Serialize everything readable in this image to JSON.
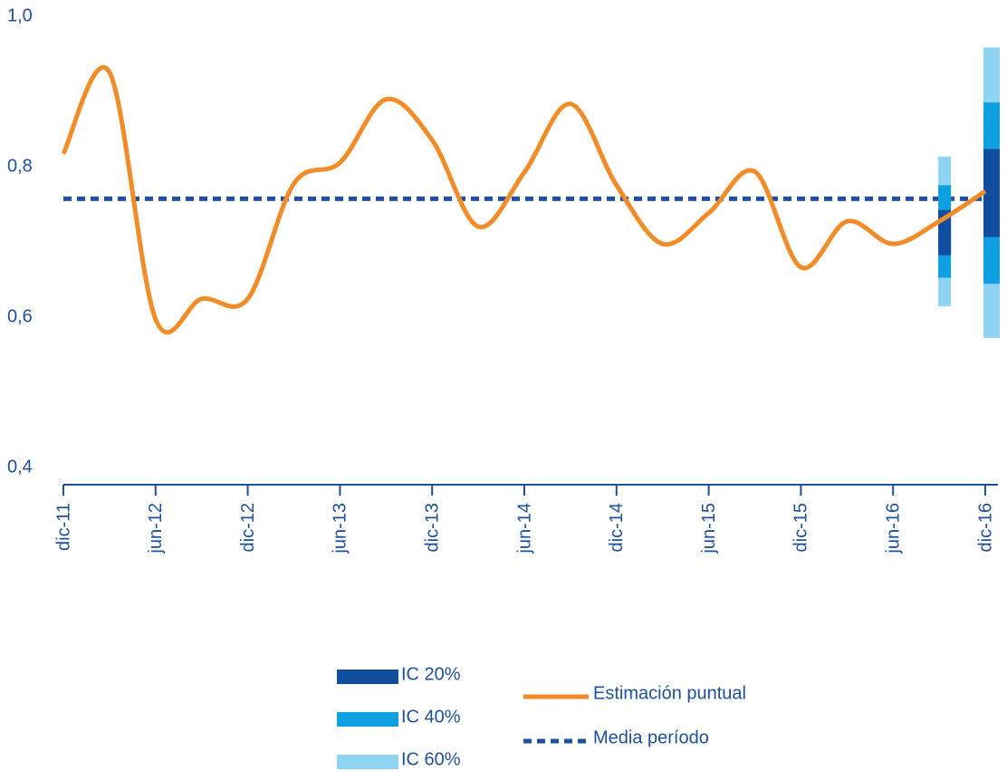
{
  "chart_data": {
    "type": "line",
    "categories": [
      "dic-11",
      null,
      "jun-12",
      null,
      "dic-12",
      null,
      "jun-13",
      null,
      "dic-13",
      null,
      "jun-14",
      null,
      "dic-14",
      null,
      "jun-15",
      null,
      "dic-15",
      null,
      "jun-16",
      null,
      "dic-16"
    ],
    "series": [
      {
        "name": "Estimación puntual",
        "color": "#f28c28",
        "values": [
          0.82,
          0.928,
          0.6,
          0.627,
          0.627,
          0.78,
          0.808,
          0.892,
          0.838,
          0.723,
          0.795,
          0.886,
          0.778,
          0.7,
          0.741,
          0.796,
          0.669,
          0.73,
          0.7,
          0.73,
          0.77
        ]
      }
    ],
    "mean": {
      "name": "Media período",
      "color": "#1e50a0",
      "value": 0.76
    },
    "intervals": [
      {
        "name": "IC 60%",
        "color": "#8ed3f2",
        "low": [
          null,
          null,
          null,
          null,
          null,
          null,
          null,
          null,
          null,
          null,
          null,
          null,
          null,
          null,
          null,
          null,
          null,
          null,
          null,
          0.617,
          0.575
        ],
        "high": [
          null,
          null,
          null,
          null,
          null,
          null,
          null,
          null,
          null,
          null,
          null,
          null,
          null,
          null,
          null,
          null,
          null,
          null,
          null,
          0.816,
          0.961
        ]
      },
      {
        "name": "IC 40%",
        "color": "#0fa0e2",
        "low": [
          null,
          null,
          null,
          null,
          null,
          null,
          null,
          null,
          null,
          null,
          null,
          null,
          null,
          null,
          null,
          null,
          null,
          null,
          null,
          0.655,
          0.647
        ],
        "high": [
          null,
          null,
          null,
          null,
          null,
          null,
          null,
          null,
          null,
          null,
          null,
          null,
          null,
          null,
          null,
          null,
          null,
          null,
          null,
          0.778,
          0.888
        ]
      },
      {
        "name": "IC 20%",
        "color": "#114d9e",
        "low": [
          null,
          null,
          null,
          null,
          null,
          null,
          null,
          null,
          null,
          null,
          null,
          null,
          null,
          null,
          null,
          null,
          null,
          null,
          null,
          0.685,
          0.709
        ],
        "high": [
          null,
          null,
          null,
          null,
          null,
          null,
          null,
          null,
          null,
          null,
          null,
          null,
          null,
          null,
          null,
          null,
          null,
          null,
          null,
          0.745,
          0.826
        ]
      }
    ],
    "ylim": [
      0.38,
      1.0
    ],
    "yticks": [
      {
        "value": 0.4,
        "label": "0,4"
      },
      {
        "value": 0.6,
        "label": "0,6"
      },
      {
        "value": 0.8,
        "label": "0,8"
      },
      {
        "value": 1.0,
        "label": "1,0"
      }
    ]
  }
}
